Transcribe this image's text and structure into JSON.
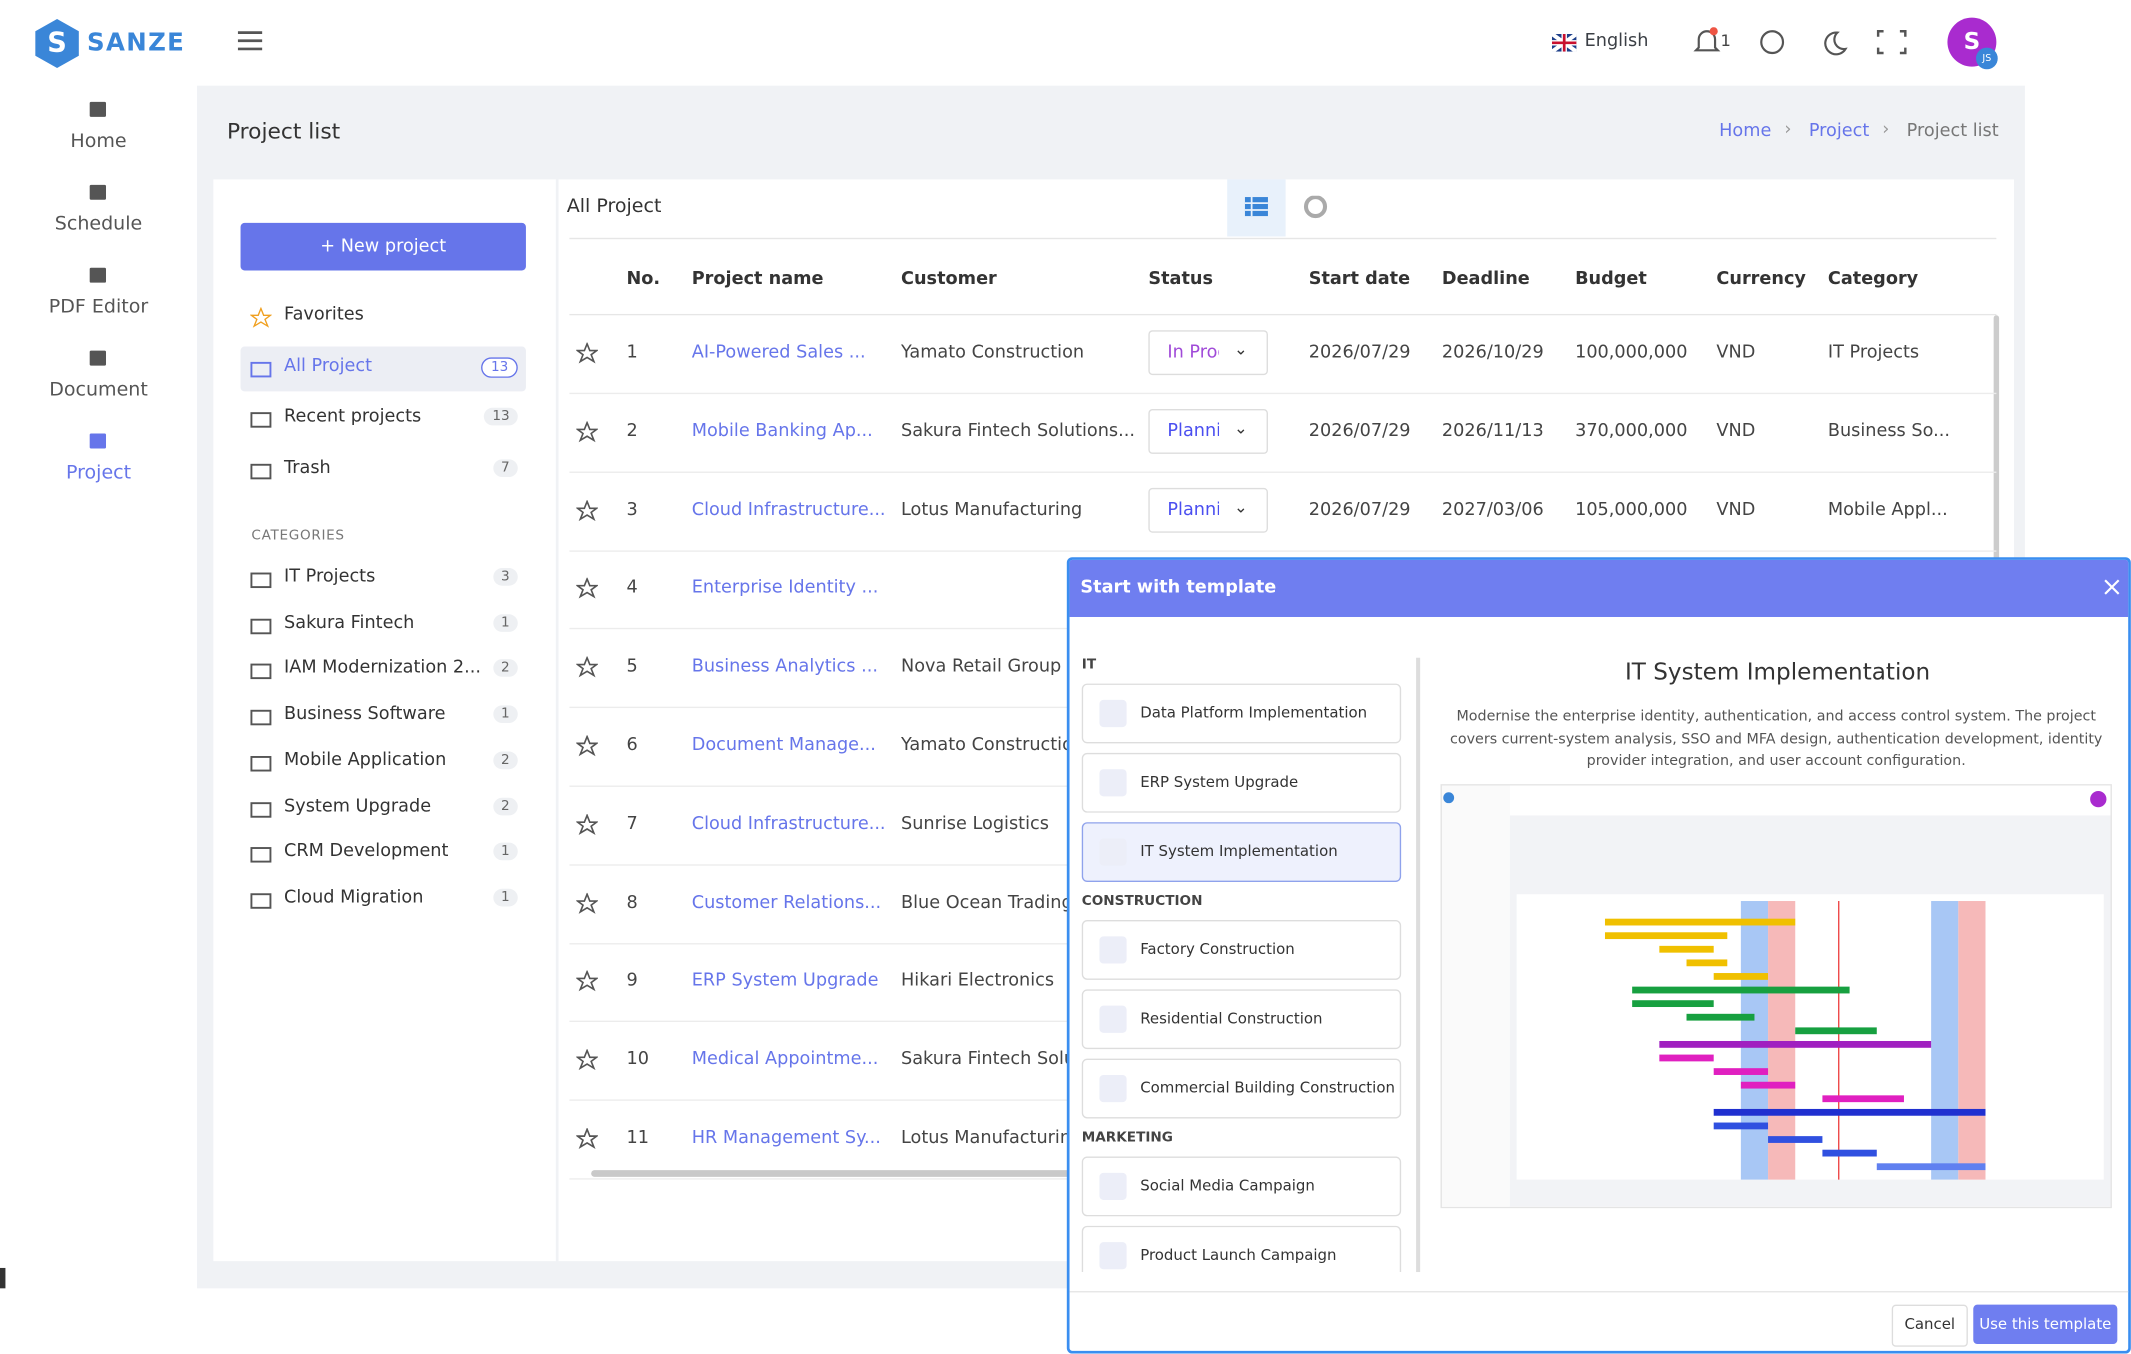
{
  "brand": "SANZE",
  "sidebar": [
    {
      "label": "Home"
    },
    {
      "label": "Schedule"
    },
    {
      "label": "PDF Editor"
    },
    {
      "label": "Document"
    },
    {
      "label": "Project"
    }
  ],
  "header": {
    "language": "English",
    "notifications": "1",
    "avatar": "S",
    "avatar_badge": "JS"
  },
  "page": {
    "title": "Project list",
    "breadcrumb": [
      "Home",
      "Project",
      "Project list"
    ]
  },
  "left_panel": {
    "new_project": "New project",
    "nav": [
      {
        "label": "Favorites"
      },
      {
        "label": "All Project",
        "count": "13"
      },
      {
        "label": "Recent projects",
        "count": "13"
      },
      {
        "label": "Trash",
        "count": "7"
      }
    ],
    "categories_title": "CATEGORIES",
    "categories": [
      {
        "label": "IT Projects",
        "count": "3"
      },
      {
        "label": "Sakura Fintech",
        "count": "1"
      },
      {
        "label": "IAM Modernization 2...",
        "count": "2"
      },
      {
        "label": "Business Software",
        "count": "1"
      },
      {
        "label": "Mobile Application",
        "count": "2"
      },
      {
        "label": "System Upgrade",
        "count": "2"
      },
      {
        "label": "CRM Development",
        "count": "1"
      },
      {
        "label": "Cloud Migration",
        "count": "1"
      }
    ]
  },
  "table": {
    "title": "All Project",
    "columns": [
      "No.",
      "Project name",
      "Customer",
      "Status",
      "Start date",
      "Deadline",
      "Budget",
      "Currency",
      "Category"
    ],
    "rows": [
      [
        "1",
        "AI-Powered Sales ...",
        "Yamato Construction",
        "In Prog",
        "2026/07/29",
        "2026/10/29",
        "100,000,000",
        "VND",
        "IT Projects"
      ],
      [
        "2",
        "Mobile Banking Ap...",
        "Sakura Fintech Solutions...",
        "Planni",
        "2026/07/29",
        "2026/11/13",
        "370,000,000",
        "VND",
        "Business So..."
      ],
      [
        "3",
        "Cloud Infrastructure...",
        "Lotus Manufacturing",
        "Planni",
        "2026/07/29",
        "2027/03/06",
        "105,000,000",
        "VND",
        "Mobile Appl..."
      ],
      [
        "4",
        "Enterprise Identity ..."
      ],
      [
        "5",
        "Business Analytics ...",
        "Nova Retail Group"
      ],
      [
        "6",
        "Document Manage...",
        "Yamato Construction"
      ],
      [
        "7",
        "Cloud Infrastructure...",
        "Sunrise Logistics"
      ],
      [
        "8",
        "Customer Relations...",
        "Blue Ocean Trading"
      ],
      [
        "9",
        "ERP System Upgrade",
        "Hikari Electronics"
      ],
      [
        "10",
        "Medical Appointme...",
        "Sakura Fintech Solut"
      ],
      [
        "11",
        "HR Management Sy...",
        "Lotus Manufacturing"
      ]
    ]
  },
  "modal": {
    "title": "Start with template",
    "groups": [
      {
        "name": "IT",
        "items": [
          "Data Platform Implementation",
          "ERP System Upgrade",
          "IT System Implementation"
        ]
      },
      {
        "name": "CONSTRUCTION",
        "items": [
          "Factory Construction",
          "Residential Construction",
          "Commercial Building Construction"
        ]
      },
      {
        "name": "MARKETING",
        "items": [
          "Social Media Campaign",
          "Product Launch Campaign"
        ]
      }
    ],
    "preview_title": "IT System Implementation",
    "preview_description": "Modernise the enterprise identity, authentication, and access control system. The project covers current-system analysis, SSO and MFA design, authentication development, identity provider integration, and user account configuration.",
    "cancel": "Cancel",
    "confirm": "Use this template"
  }
}
